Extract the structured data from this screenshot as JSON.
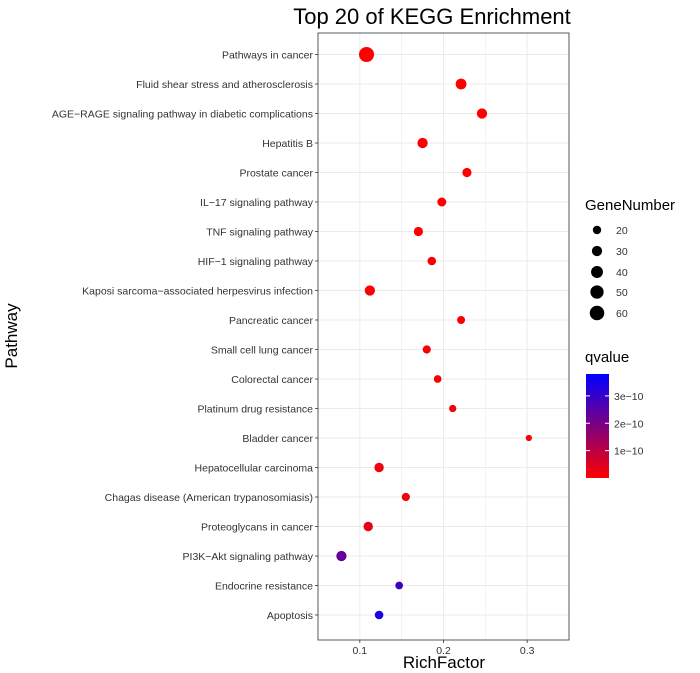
{
  "chart_data": {
    "type": "scatter",
    "title": "Top 20 of KEGG Enrichment",
    "xlabel": "RichFactor",
    "ylabel": "Pathway",
    "xlim": [
      0.05,
      0.35
    ],
    "xticks": [
      0.1,
      0.2,
      0.3
    ],
    "xtick_labels": [
      "0.1",
      "0.2",
      "0.3"
    ],
    "grid": true,
    "categories": [
      "Pathways in cancer",
      "Fluid shear stress and atherosclerosis",
      "AGE−RAGE signaling pathway in diabetic complications",
      "Hepatitis B",
      "Prostate cancer",
      "IL−17 signaling pathway",
      "TNF signaling pathway",
      "HIF−1 signaling pathway",
      "Kaposi sarcoma−associated herpesvirus infection",
      "Pancreatic cancer",
      "Small cell lung cancer",
      "Colorectal cancer",
      "Platinum drug resistance",
      "Bladder cancer",
      "Hepatocellular carcinoma",
      "Chagas disease (American trypanosomiasis)",
      "Proteoglycans in cancer",
      "PI3K−Akt signaling pathway",
      "Endocrine resistance",
      "Apoptosis"
    ],
    "points": [
      {
        "pathway": "Pathways in cancer",
        "rich_factor": 0.108,
        "gene_number": 64,
        "qvalue": 0.0
      },
      {
        "pathway": "Fluid shear stress and atherosclerosis",
        "rich_factor": 0.221,
        "gene_number": 33,
        "qvalue": 0.0
      },
      {
        "pathway": "AGE−RAGE signaling pathway in diabetic complications",
        "rich_factor": 0.246,
        "gene_number": 30,
        "qvalue": 0.0
      },
      {
        "pathway": "Hepatitis B",
        "rich_factor": 0.175,
        "gene_number": 30,
        "qvalue": 2e-12
      },
      {
        "pathway": "Prostate cancer",
        "rich_factor": 0.228,
        "gene_number": 24,
        "qvalue": 2e-12
      },
      {
        "pathway": "IL−17 signaling pathway",
        "rich_factor": 0.198,
        "gene_number": 23,
        "qvalue": 3e-12
      },
      {
        "pathway": "TNF signaling pathway",
        "rich_factor": 0.17,
        "gene_number": 24,
        "qvalue": 3e-12
      },
      {
        "pathway": "HIF−1 signaling pathway",
        "rich_factor": 0.186,
        "gene_number": 21,
        "qvalue": 4e-12
      },
      {
        "pathway": "Kaposi sarcoma−associated herpesvirus infection",
        "rich_factor": 0.112,
        "gene_number": 30,
        "qvalue": 5e-12
      },
      {
        "pathway": "Pancreatic cancer",
        "rich_factor": 0.221,
        "gene_number": 18,
        "qvalue": 6e-12
      },
      {
        "pathway": "Small cell lung cancer",
        "rich_factor": 0.18,
        "gene_number": 19,
        "qvalue": 7e-12
      },
      {
        "pathway": "Colorectal cancer",
        "rich_factor": 0.193,
        "gene_number": 17,
        "qvalue": 8e-12
      },
      {
        "pathway": "Platinum drug resistance",
        "rich_factor": 0.211,
        "gene_number": 15,
        "qvalue": 9e-12
      },
      {
        "pathway": "Bladder cancer",
        "rich_factor": 0.302,
        "gene_number": 11,
        "qvalue": 1e-11
      },
      {
        "pathway": "Hepatocellular carcinoma",
        "rich_factor": 0.123,
        "gene_number": 25,
        "qvalue": 2e-11
      },
      {
        "pathway": "Chagas disease (American trypanosomiasis)",
        "rich_factor": 0.155,
        "gene_number": 19,
        "qvalue": 2e-11
      },
      {
        "pathway": "Proteoglycans in cancer",
        "rich_factor": 0.11,
        "gene_number": 25,
        "qvalue": 3e-11
      },
      {
        "pathway": "PI3K−Akt signaling pathway",
        "rich_factor": 0.078,
        "gene_number": 30,
        "qvalue": 2.3e-10
      },
      {
        "pathway": "Endocrine resistance",
        "rich_factor": 0.147,
        "gene_number": 17,
        "qvalue": 2.9e-10
      },
      {
        "pathway": "Apoptosis",
        "rich_factor": 0.123,
        "gene_number": 21,
        "qvalue": 3.4e-10
      }
    ],
    "size_legend": {
      "title": "GeneNumber",
      "values": [
        20,
        30,
        40,
        50,
        60
      ],
      "labels": [
        "20",
        "30",
        "40",
        "50",
        "60"
      ]
    },
    "color_legend": {
      "title": "qvalue",
      "range": [
        0,
        3.8e-10
      ],
      "ticks": [
        1e-10,
        2e-10,
        3e-10
      ],
      "tick_labels": [
        "1e−10",
        "2e−10",
        "3e−10"
      ],
      "low_color": "#ff0000",
      "high_color": "#0000ff"
    },
    "legend_placement": "right",
    "colors": {
      "panel_background": "#ffffff",
      "grid": "#ebebeb",
      "panel_border": "#333333"
    }
  }
}
